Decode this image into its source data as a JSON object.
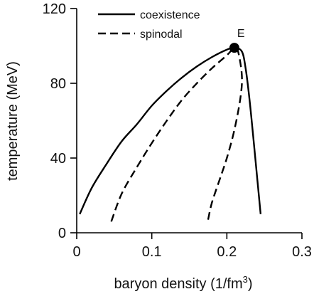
{
  "chart_data": {
    "type": "line",
    "xlabel": "baryon density (1/fm",
    "xlabel_sup": "3",
    "xlabel_close": ")",
    "ylabel": "temperature (MeV)",
    "xlim": [
      0,
      0.3
    ],
    "ylim": [
      0,
      120
    ],
    "xticks": [
      0,
      0.1,
      0.2,
      0.3
    ],
    "yticks": [
      0,
      40,
      80,
      120
    ],
    "xtick_labels": [
      "0",
      "0.1",
      "0.2",
      "0.3"
    ],
    "ytick_labels": [
      "0",
      "40",
      "80",
      "120"
    ],
    "grid": false,
    "legend_position": "top-center",
    "series": [
      {
        "name": "coexistence",
        "style": "solid",
        "color": "#000000",
        "x": [
          0.004,
          0.02,
          0.04,
          0.06,
          0.08,
          0.1,
          0.12,
          0.14,
          0.16,
          0.18,
          0.2,
          0.21,
          0.22,
          0.225,
          0.23,
          0.235,
          0.24,
          0.245
        ],
        "y": [
          10,
          24,
          37,
          49,
          58,
          68,
          76,
          83,
          89,
          94,
          98,
          99,
          97,
          88,
          72,
          52,
          31,
          10
        ]
      },
      {
        "name": "spinodal",
        "style": "dashed",
        "color": "#000000",
        "x": [
          0.046,
          0.06,
          0.08,
          0.1,
          0.12,
          0.14,
          0.16,
          0.18,
          0.2,
          0.21,
          0.215,
          0.22,
          0.218,
          0.21,
          0.2,
          0.19,
          0.18,
          0.175
        ],
        "y": [
          6,
          21,
          35,
          48,
          60,
          71,
          80,
          88,
          95,
          99,
          97,
          84,
          72,
          55,
          40,
          28,
          16,
          7
        ]
      }
    ],
    "points": [
      {
        "label": "E",
        "x": 0.21,
        "y": 99
      }
    ]
  }
}
